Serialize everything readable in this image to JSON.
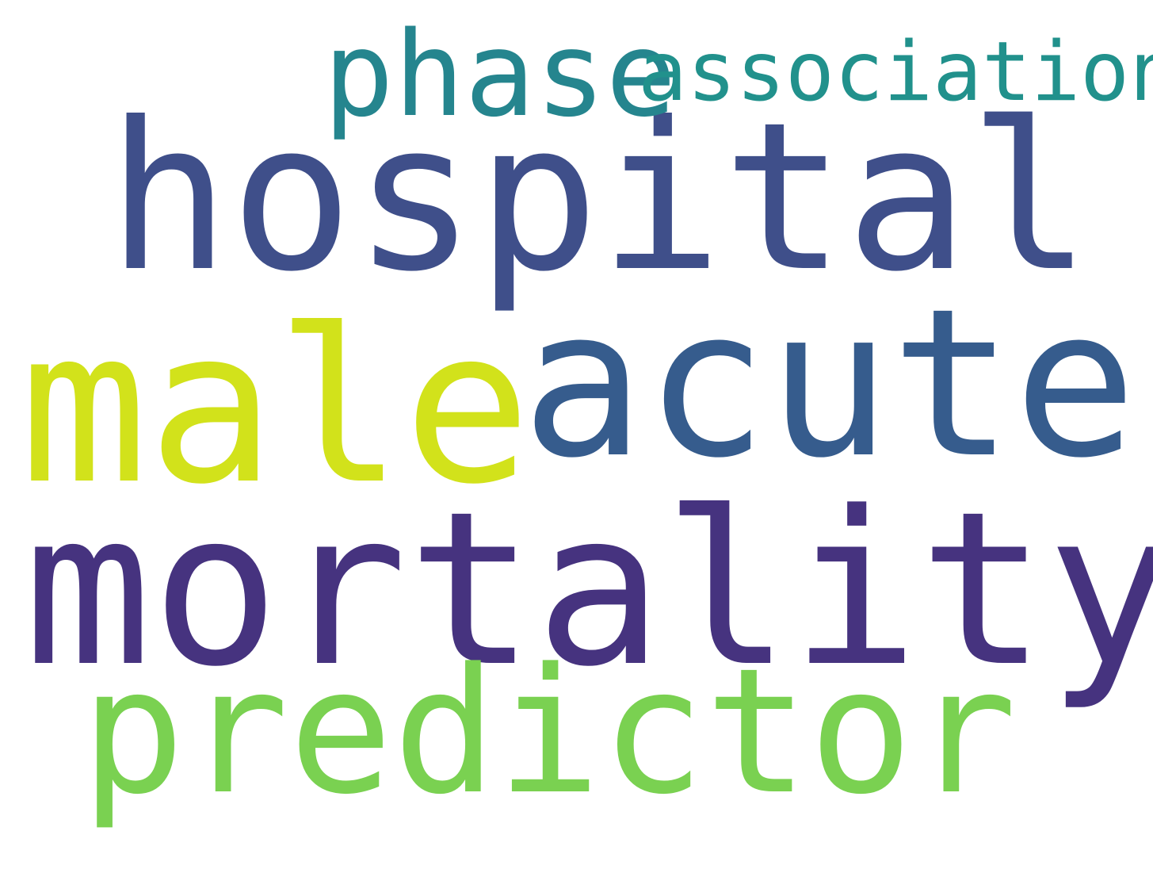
{
  "cloud": {
    "background_color": "#ffffff",
    "words": [
      {
        "key": "hospital",
        "text": "hospital",
        "color": "#3f4f8a"
      },
      {
        "key": "mortality",
        "text": "mortality",
        "color": "#46337f"
      },
      {
        "key": "acute",
        "text": "acute",
        "color": "#365c8d"
      },
      {
        "key": "male",
        "text": "male",
        "color": "#d2e21b"
      },
      {
        "key": "predictor",
        "text": "predictor",
        "color": "#7ad151"
      },
      {
        "key": "phase",
        "text": "phase",
        "color": "#25858e"
      },
      {
        "key": "association",
        "text": "association",
        "color": "#21918c"
      }
    ]
  }
}
